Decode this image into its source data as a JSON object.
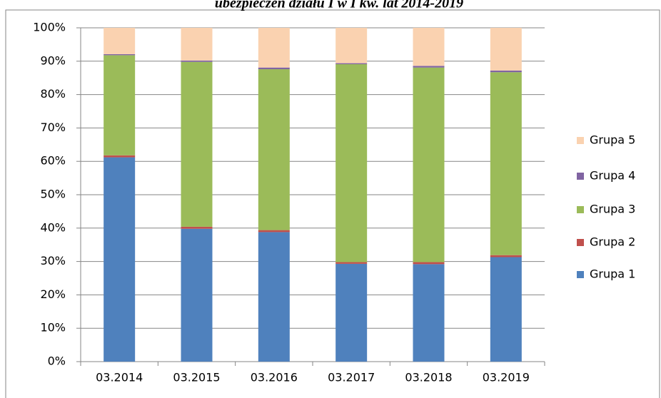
{
  "chart_data": {
    "type": "stacked_bar",
    "title": "ubezpieczeń działu I w I kw. lat 2014-2019",
    "categories": [
      "03.2014",
      "03.2015",
      "03.2016",
      "03.2017",
      "03.2018",
      "03.2019"
    ],
    "series": [
      {
        "name": "Grupa 1",
        "color": "#4f81bd",
        "values": [
          61.2,
          39.8,
          38.8,
          29.3,
          29.2,
          31.3
        ]
      },
      {
        "name": "Grupa 2",
        "color": "#c0504d",
        "values": [
          0.6,
          0.6,
          0.6,
          0.5,
          0.6,
          0.6
        ]
      },
      {
        "name": "Grupa 3",
        "color": "#9bbb59",
        "values": [
          30.0,
          49.4,
          48.2,
          59.3,
          58.3,
          54.8
        ]
      },
      {
        "name": "Grupa 4",
        "color": "#8064a2",
        "values": [
          0.3,
          0.4,
          0.5,
          0.3,
          0.5,
          0.5
        ]
      },
      {
        "name": "Grupa 5",
        "color": "#fad2b0",
        "values": [
          7.9,
          9.8,
          11.9,
          10.6,
          11.4,
          12.8
        ]
      }
    ],
    "ylim": [
      0,
      100
    ],
    "yticks": [
      {
        "value": 0,
        "label": "0%"
      },
      {
        "value": 10,
        "label": "10%"
      },
      {
        "value": 20,
        "label": "20%"
      },
      {
        "value": 30,
        "label": "30%"
      },
      {
        "value": 40,
        "label": "40%"
      },
      {
        "value": 50,
        "label": "50%"
      },
      {
        "value": 60,
        "label": "60%"
      },
      {
        "value": 70,
        "label": "70%"
      },
      {
        "value": 80,
        "label": "80%"
      },
      {
        "value": 90,
        "label": "90%"
      },
      {
        "value": 100,
        "label": "100%"
      }
    ],
    "grid": true
  }
}
